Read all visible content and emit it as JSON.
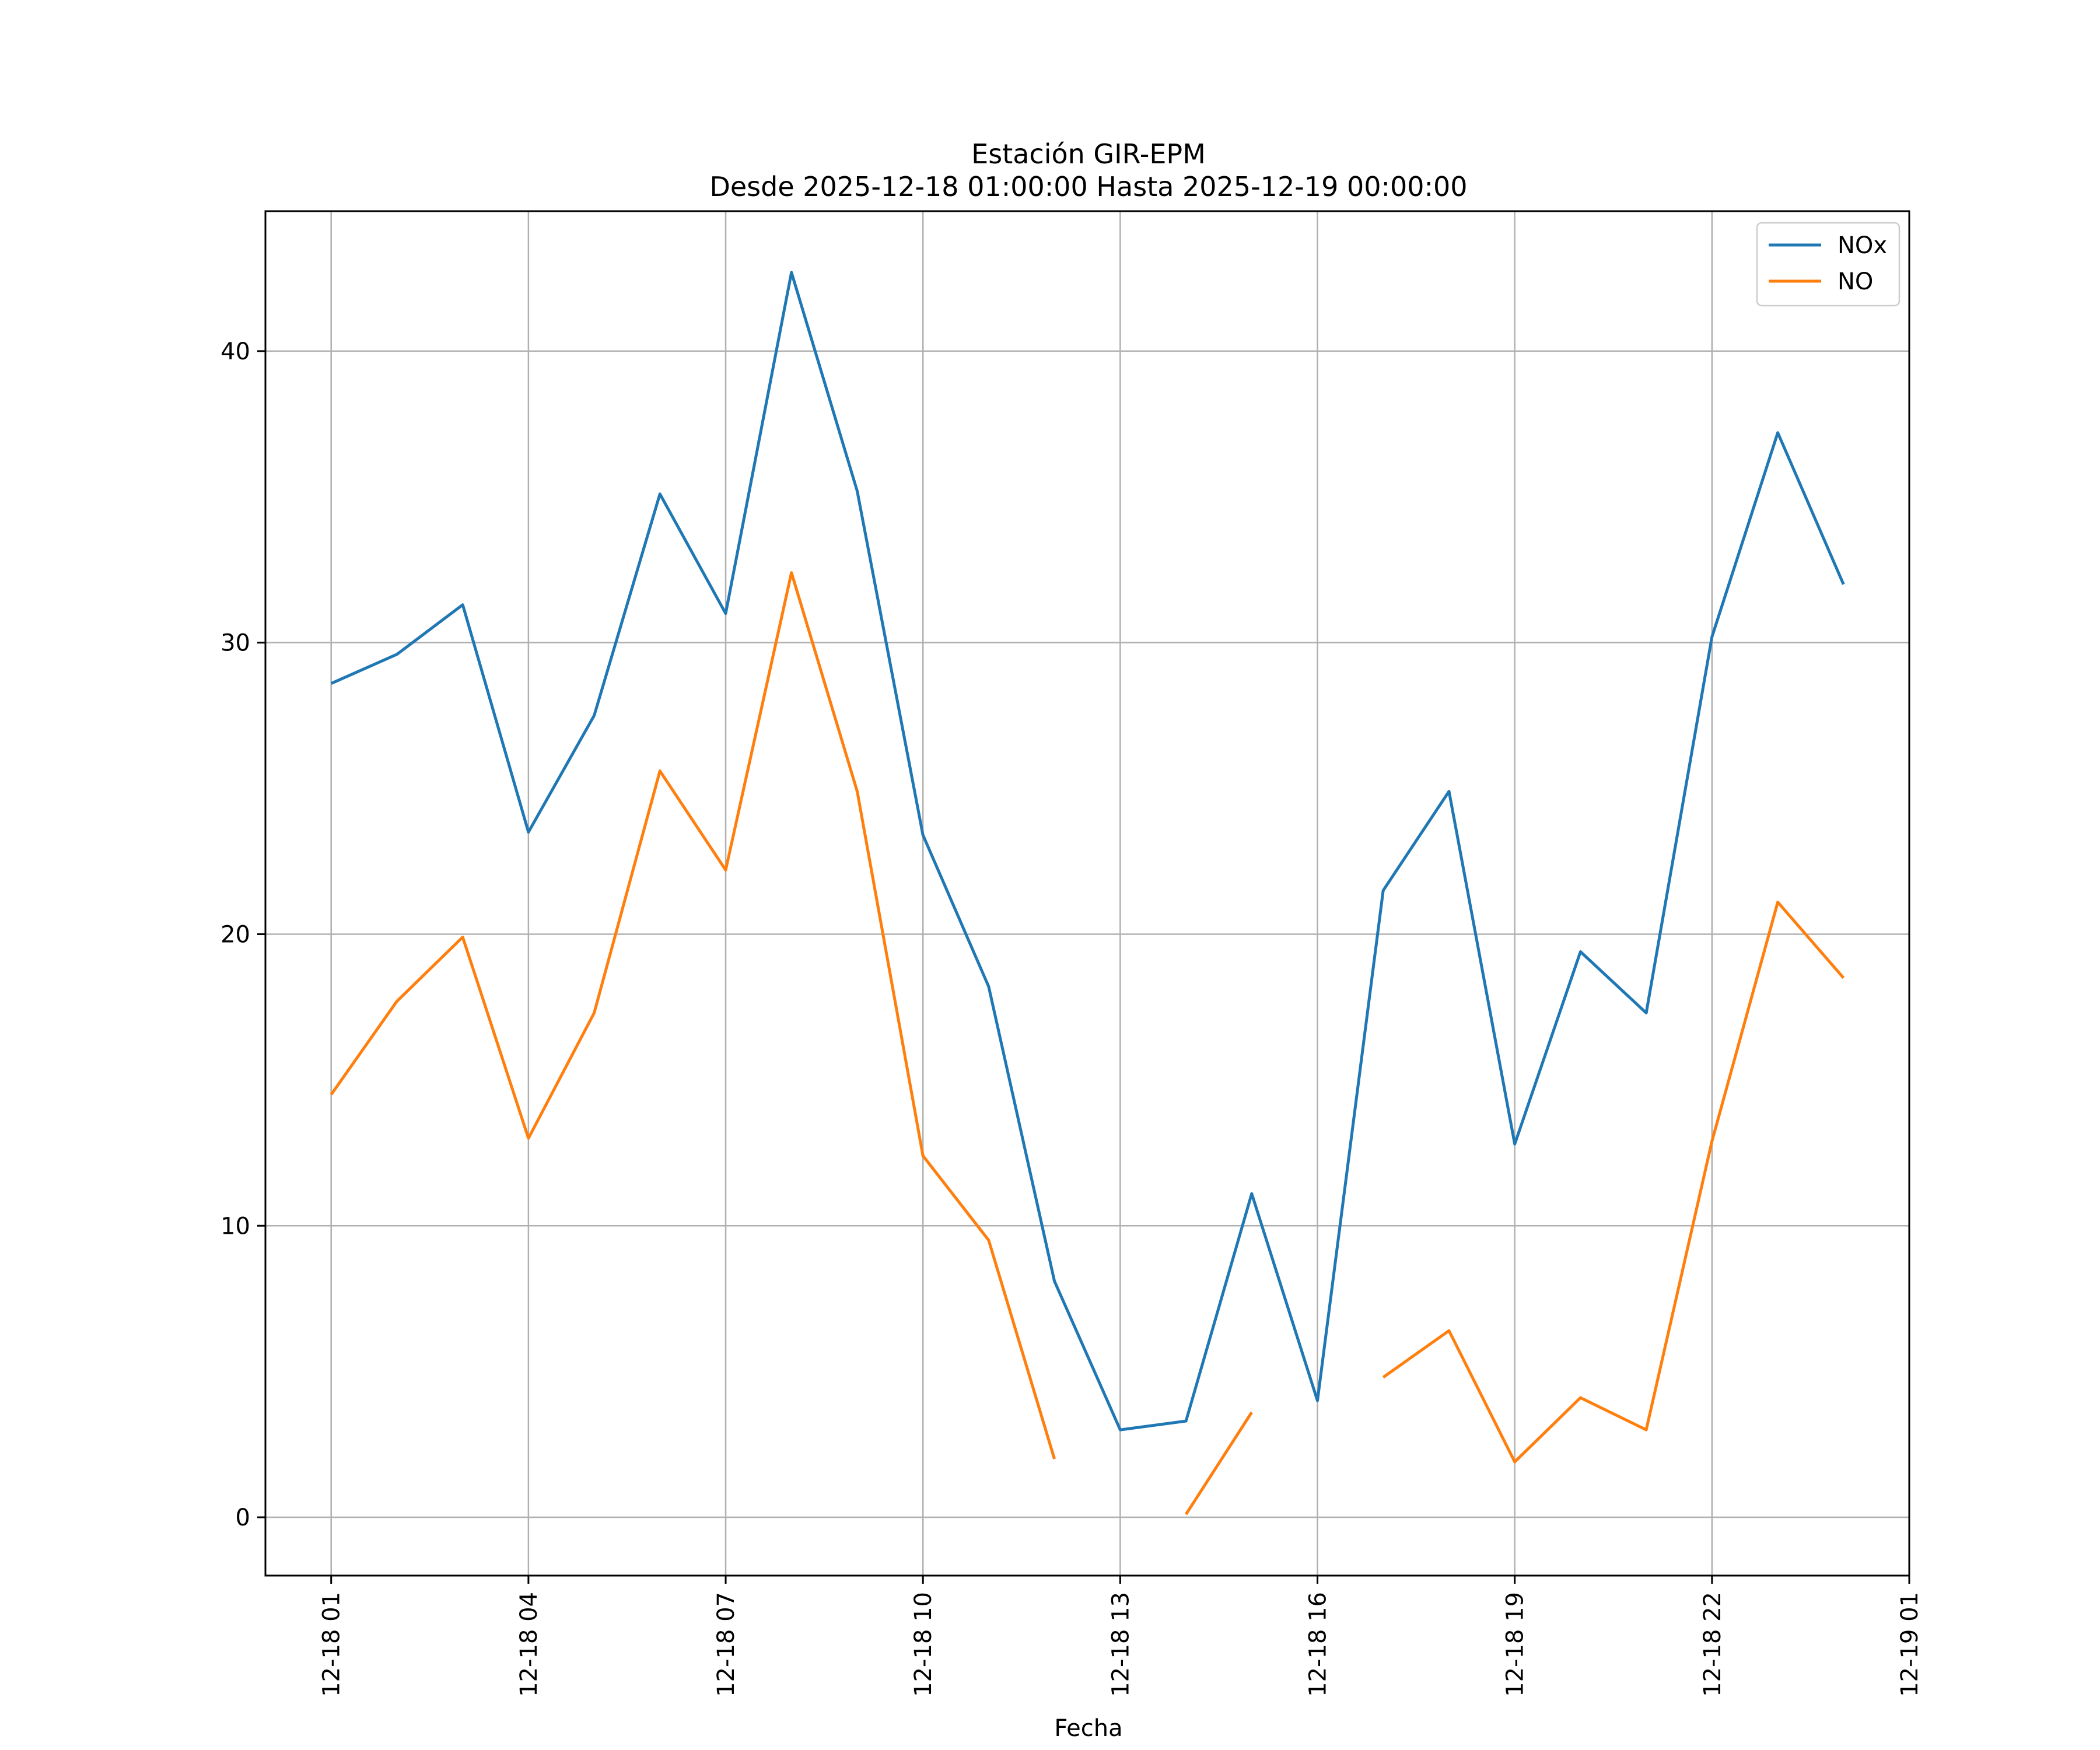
{
  "chart_data": {
    "type": "line",
    "title": "Estación GIR-EPM",
    "subtitle": "Desde 2025-12-18 01:00:00 Hasta 2025-12-19 00:00:00",
    "xlabel": "Fecha",
    "ylabel": "",
    "x": [
      "12-18 01",
      "12-18 02",
      "12-18 03",
      "12-18 04",
      "12-18 05",
      "12-18 06",
      "12-18 07",
      "12-18 08",
      "12-18 09",
      "12-18 10",
      "12-18 11",
      "12-18 12",
      "12-18 13",
      "12-18 14",
      "12-18 15",
      "12-18 16",
      "12-18 17",
      "12-18 18",
      "12-18 19",
      "12-18 20",
      "12-18 21",
      "12-18 22",
      "12-18 23",
      "12-19 00"
    ],
    "x_ticks": [
      "12-18 01",
      "12-18 04",
      "12-18 07",
      "12-18 10",
      "12-18 13",
      "12-18 16",
      "12-18 19",
      "12-18 22",
      "12-19 01"
    ],
    "y_ticks": [
      0,
      10,
      20,
      30,
      40
    ],
    "xlim": [
      "12-18 00:00",
      "12-19 01:00"
    ],
    "ylim": [
      -2.0,
      44.8
    ],
    "grid": true,
    "legend_position": "top-right",
    "series": [
      {
        "name": "NOx",
        "color": "#1f77b4",
        "values": [
          28.6,
          29.6,
          31.3,
          23.5,
          27.5,
          35.1,
          31.0,
          42.7,
          35.2,
          23.4,
          18.2,
          8.1,
          3.0,
          3.3,
          11.1,
          4.0,
          21.5,
          24.9,
          12.8,
          19.4,
          17.3,
          30.2,
          37.2,
          32.0
        ]
      },
      {
        "name": "NO",
        "color": "#ff7f0e",
        "values": [
          14.5,
          17.7,
          19.9,
          13.0,
          17.3,
          25.6,
          22.2,
          32.4,
          24.9,
          12.4,
          9.5,
          2.0,
          null,
          0.1,
          3.6,
          null,
          4.8,
          6.4,
          1.9,
          4.1,
          3.0,
          12.9,
          21.1,
          18.5
        ]
      }
    ]
  }
}
